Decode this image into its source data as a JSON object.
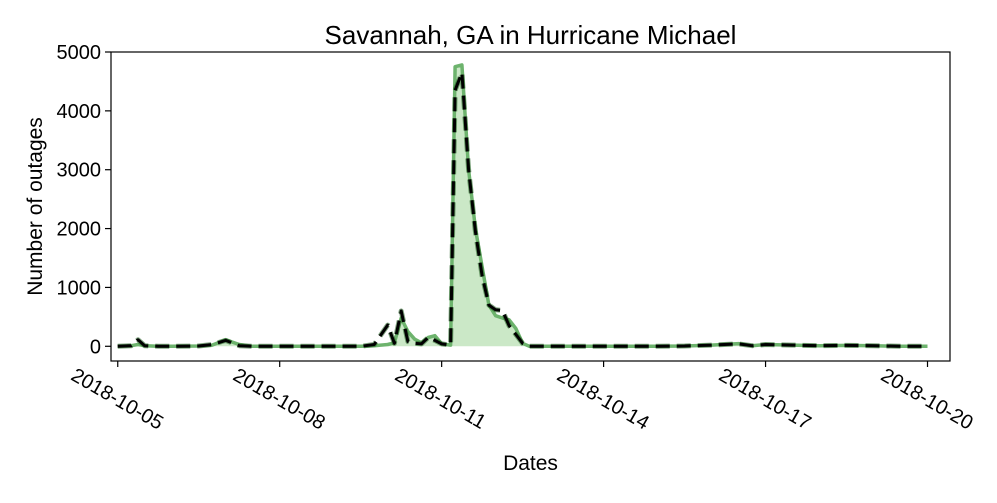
{
  "chart_data": {
    "type": "line",
    "title": "Savannah, GA in Hurricane Michael",
    "xlabel": "Dates",
    "ylabel": "Number of outages",
    "xlim": [
      "2018-10-04T21:00",
      "2018-10-20T10:00"
    ],
    "ylim": [
      -250,
      5000
    ],
    "x_ticks": [
      "2018-10-05",
      "2018-10-08",
      "2018-10-11",
      "2018-10-14",
      "2018-10-17",
      "2018-10-20"
    ],
    "y_ticks": [
      0,
      1000,
      2000,
      3000,
      4000,
      5000
    ],
    "grid": false,
    "legend": null,
    "colors": {
      "series_a_line": "#6db36d",
      "series_a_fill": "#cbe8c7",
      "series_b_line": "#000000",
      "series_b_outline": "#1d5c1d"
    },
    "series": [
      {
        "style": "solid-filled",
        "x": [
          "2018-10-05T00:00",
          "2018-10-05T06:00",
          "2018-10-05T09:00",
          "2018-10-05T12:00",
          "2018-10-05T18:00",
          "2018-10-06T00:00",
          "2018-10-06T12:00",
          "2018-10-06T18:00",
          "2018-10-07T00:00",
          "2018-10-07T06:00",
          "2018-10-07T12:00",
          "2018-10-07T18:00",
          "2018-10-08T00:00",
          "2018-10-08T12:00",
          "2018-10-09T00:00",
          "2018-10-09T12:00",
          "2018-10-09T18:00",
          "2018-10-10T00:00",
          "2018-10-10T03:00",
          "2018-10-10T06:00",
          "2018-10-10T09:00",
          "2018-10-10T12:00",
          "2018-10-10T15:00",
          "2018-10-10T18:00",
          "2018-10-10T21:00",
          "2018-10-11T00:00",
          "2018-10-11T04:00",
          "2018-10-11T06:00",
          "2018-10-11T09:00",
          "2018-10-11T12:00",
          "2018-10-11T15:00",
          "2018-10-11T18:00",
          "2018-10-11T21:00",
          "2018-10-12T00:00",
          "2018-10-12T03:00",
          "2018-10-12T06:00",
          "2018-10-12T09:00",
          "2018-10-12T12:00",
          "2018-10-12T15:00",
          "2018-10-13T00:00",
          "2018-10-13T12:00",
          "2018-10-14T00:00",
          "2018-10-15T00:00",
          "2018-10-15T12:00",
          "2018-10-16T00:00",
          "2018-10-16T12:00",
          "2018-10-16T18:00",
          "2018-10-17T00:00",
          "2018-10-17T12:00",
          "2018-10-18T00:00",
          "2018-10-18T12:00",
          "2018-10-19T00:00",
          "2018-10-19T12:00",
          "2018-10-20T00:00"
        ],
        "y": [
          0,
          10,
          30,
          10,
          0,
          0,
          5,
          20,
          110,
          30,
          0,
          0,
          0,
          0,
          0,
          0,
          10,
          30,
          60,
          480,
          250,
          120,
          60,
          150,
          180,
          40,
          20,
          4750,
          4780,
          3000,
          2000,
          1350,
          700,
          520,
          480,
          450,
          300,
          50,
          0,
          0,
          0,
          0,
          0,
          5,
          20,
          45,
          10,
          30,
          20,
          10,
          15,
          10,
          0,
          0
        ]
      },
      {
        "style": "dashed",
        "x": [
          "2018-10-05T00:00",
          "2018-10-05T06:00",
          "2018-10-05T09:00",
          "2018-10-05T12:00",
          "2018-10-05T18:00",
          "2018-10-06T00:00",
          "2018-10-06T12:00",
          "2018-10-06T18:00",
          "2018-10-07T00:00",
          "2018-10-07T06:00",
          "2018-10-07T12:00",
          "2018-10-07T18:00",
          "2018-10-08T00:00",
          "2018-10-08T12:00",
          "2018-10-09T00:00",
          "2018-10-09T12:00",
          "2018-10-09T18:00",
          "2018-10-10T00:00",
          "2018-10-10T03:00",
          "2018-10-10T06:00",
          "2018-10-10T09:00",
          "2018-10-10T12:00",
          "2018-10-10T15:00",
          "2018-10-10T18:00",
          "2018-10-10T21:00",
          "2018-10-11T00:00",
          "2018-10-11T04:00",
          "2018-10-11T06:00",
          "2018-10-11T09:00",
          "2018-10-11T12:00",
          "2018-10-11T15:00",
          "2018-10-11T18:00",
          "2018-10-11T21:00",
          "2018-10-12T00:00",
          "2018-10-12T03:00",
          "2018-10-12T06:00",
          "2018-10-12T09:00",
          "2018-10-12T12:00",
          "2018-10-12T15:00",
          "2018-10-13T00:00",
          "2018-10-13T12:00",
          "2018-10-14T00:00",
          "2018-10-15T00:00",
          "2018-10-15T12:00",
          "2018-10-16T00:00",
          "2018-10-16T12:00",
          "2018-10-16T18:00",
          "2018-10-17T00:00",
          "2018-10-17T12:00",
          "2018-10-18T00:00",
          "2018-10-18T12:00",
          "2018-10-19T00:00",
          "2018-10-19T12:00",
          "2018-10-20T00:00"
        ],
        "y": [
          0,
          10,
          110,
          10,
          0,
          0,
          5,
          30,
          100,
          10,
          0,
          0,
          0,
          0,
          0,
          0,
          30,
          360,
          50,
          600,
          80,
          50,
          40,
          150,
          100,
          40,
          20,
          4350,
          4650,
          3000,
          1950,
          1200,
          700,
          620,
          610,
          350,
          200,
          50,
          0,
          0,
          0,
          0,
          0,
          5,
          20,
          40,
          10,
          30,
          20,
          10,
          15,
          10,
          0,
          0
        ]
      }
    ]
  }
}
